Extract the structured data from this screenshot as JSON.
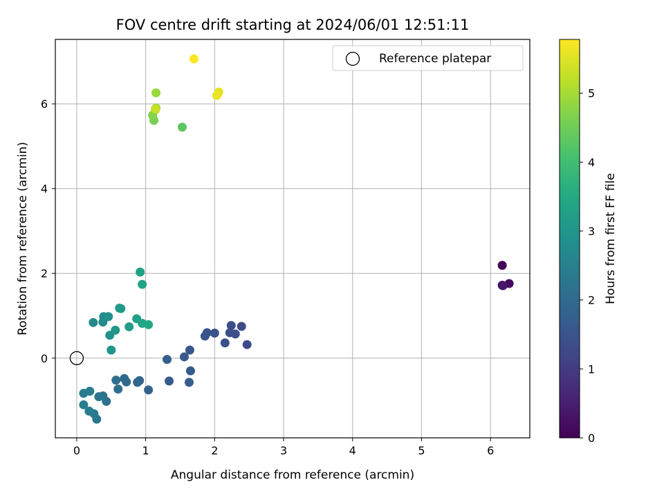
{
  "chart_data": {
    "type": "scatter",
    "title": "FOV centre drift starting at 2024/06/01 12:51:11",
    "xlabel": "Angular distance from reference (arcmin)",
    "ylabel": "Rotation from reference (arcmin)",
    "xlim": [
      -0.31,
      6.57
    ],
    "ylim": [
      -1.88,
      7.52
    ],
    "xticks": [
      0,
      1,
      2,
      3,
      4,
      5,
      6
    ],
    "yticks": [
      0,
      2,
      4,
      6
    ],
    "grid": true,
    "legend": {
      "placement": "top-right",
      "entries": [
        "Reference platepar"
      ]
    },
    "reference_point": {
      "name": "Reference platepar",
      "x": 0,
      "y": 0
    },
    "colorbar": {
      "label": "Hours from first FF file",
      "range": [
        0,
        5.78
      ],
      "ticks": [
        0,
        1,
        2,
        3,
        4,
        5
      ],
      "colormap": "viridis"
    },
    "points": [
      {
        "x": 6.17,
        "y": 2.19,
        "h": 0.05
      },
      {
        "x": 6.27,
        "y": 1.76,
        "h": 0.15
      },
      {
        "x": 6.17,
        "y": 1.72,
        "h": 0.25
      },
      {
        "x": 6.18,
        "y": 1.71,
        "h": 0.35
      },
      {
        "x": 2.47,
        "y": 0.32,
        "h": 1.25
      },
      {
        "x": 2.39,
        "y": 0.75,
        "h": 1.3
      },
      {
        "x": 2.3,
        "y": 0.57,
        "h": 1.33
      },
      {
        "x": 2.24,
        "y": 0.77,
        "h": 1.36
      },
      {
        "x": 2.22,
        "y": 0.6,
        "h": 1.4
      },
      {
        "x": 2.15,
        "y": 0.36,
        "h": 1.43
      },
      {
        "x": 2.0,
        "y": 0.59,
        "h": 1.46
      },
      {
        "x": 1.89,
        "y": 0.6,
        "h": 1.5
      },
      {
        "x": 1.86,
        "y": 0.52,
        "h": 1.53
      },
      {
        "x": 1.64,
        "y": 0.19,
        "h": 1.56
      },
      {
        "x": 1.56,
        "y": 0.03,
        "h": 1.6
      },
      {
        "x": 1.65,
        "y": -0.3,
        "h": 1.63
      },
      {
        "x": 1.63,
        "y": -0.57,
        "h": 1.66
      },
      {
        "x": 1.34,
        "y": -0.54,
        "h": 1.7
      },
      {
        "x": 1.31,
        "y": -0.03,
        "h": 1.73
      },
      {
        "x": 1.04,
        "y": -0.75,
        "h": 1.8
      },
      {
        "x": 0.91,
        "y": -0.53,
        "h": 1.85
      },
      {
        "x": 0.88,
        "y": -0.57,
        "h": 1.9
      },
      {
        "x": 0.72,
        "y": -0.56,
        "h": 1.95
      },
      {
        "x": 0.69,
        "y": -0.48,
        "h": 2.0
      },
      {
        "x": 0.6,
        "y": -0.73,
        "h": 2.05
      },
      {
        "x": 0.57,
        "y": -0.52,
        "h": 2.1
      },
      {
        "x": 0.43,
        "y": -1.02,
        "h": 2.15
      },
      {
        "x": 0.38,
        "y": -0.89,
        "h": 2.2
      },
      {
        "x": 0.32,
        "y": -0.91,
        "h": 2.25
      },
      {
        "x": 0.29,
        "y": -1.44,
        "h": 2.3
      },
      {
        "x": 0.25,
        "y": -1.31,
        "h": 2.35
      },
      {
        "x": 0.19,
        "y": -0.78,
        "h": 2.38
      },
      {
        "x": 0.18,
        "y": -1.25,
        "h": 2.4
      },
      {
        "x": 0.1,
        "y": -0.83,
        "h": 2.43
      },
      {
        "x": 0.1,
        "y": -1.1,
        "h": 2.46
      },
      {
        "x": 0.24,
        "y": 0.84,
        "h": 2.7
      },
      {
        "x": 0.38,
        "y": 0.85,
        "h": 2.75
      },
      {
        "x": 0.39,
        "y": 0.98,
        "h": 2.8
      },
      {
        "x": 0.46,
        "y": 0.98,
        "h": 2.85
      },
      {
        "x": 0.48,
        "y": 0.54,
        "h": 2.9
      },
      {
        "x": 0.5,
        "y": 0.19,
        "h": 3.0
      },
      {
        "x": 0.56,
        "y": 0.66,
        "h": 3.05
      },
      {
        "x": 0.62,
        "y": 1.18,
        "h": 3.1
      },
      {
        "x": 0.64,
        "y": 1.17,
        "h": 3.13
      },
      {
        "x": 0.76,
        "y": 0.74,
        "h": 3.2
      },
      {
        "x": 0.87,
        "y": 0.93,
        "h": 3.25
      },
      {
        "x": 0.92,
        "y": 2.03,
        "h": 3.3
      },
      {
        "x": 0.95,
        "y": 1.74,
        "h": 3.35
      },
      {
        "x": 0.95,
        "y": 0.82,
        "h": 3.4
      },
      {
        "x": 1.04,
        "y": 0.79,
        "h": 3.45
      },
      {
        "x": 1.53,
        "y": 5.45,
        "h": 4.3
      },
      {
        "x": 1.12,
        "y": 5.61,
        "h": 4.6
      },
      {
        "x": 1.1,
        "y": 5.73,
        "h": 4.7
      },
      {
        "x": 1.14,
        "y": 5.86,
        "h": 4.8
      },
      {
        "x": 1.15,
        "y": 5.9,
        "h": 4.85
      },
      {
        "x": 1.15,
        "y": 6.26,
        "h": 4.9
      },
      {
        "x": 1.14,
        "y": 5.88,
        "h": 5.3
      },
      {
        "x": 2.03,
        "y": 6.2,
        "h": 5.5
      },
      {
        "x": 2.06,
        "y": 6.28,
        "h": 5.55
      },
      {
        "x": 2.04,
        "y": 6.22,
        "h": 5.6
      },
      {
        "x": 1.7,
        "y": 7.06,
        "h": 5.78
      }
    ]
  }
}
